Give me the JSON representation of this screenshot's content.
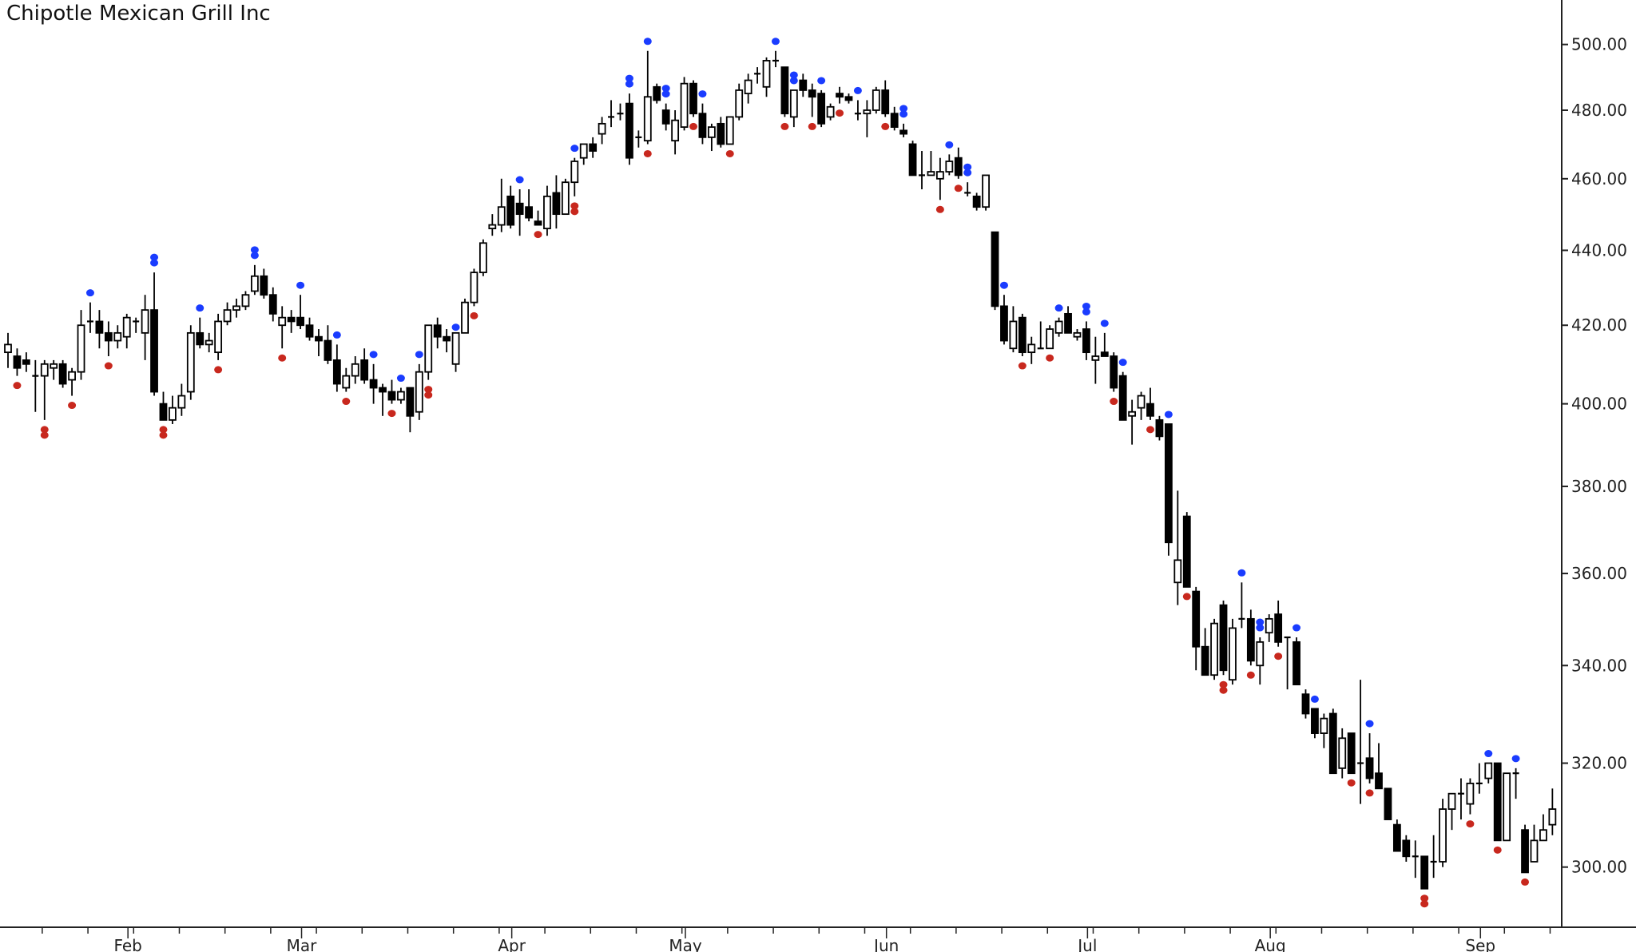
{
  "chart_data": {
    "type": "candlestick",
    "title": "Chipotle Mexican Grill Inc",
    "y_scale": "log",
    "ylim": [
      289,
      514
    ],
    "y_ticks": [
      "300.00",
      "320.00",
      "340.00",
      "360.00",
      "380.00",
      "400.00",
      "420.00",
      "440.00",
      "460.00",
      "480.00",
      "500.00"
    ],
    "y_axis_position": "right",
    "grid": false,
    "x_months": [
      {
        "label": "Feb",
        "index": 14
      },
      {
        "label": "Mar",
        "index": 33
      },
      {
        "label": "Apr",
        "index": 56
      },
      {
        "label": "May",
        "index": 75
      },
      {
        "label": "Jun",
        "index": 97
      },
      {
        "label": "Jul",
        "index": 119
      },
      {
        "label": "Aug",
        "index": 139
      },
      {
        "label": "Sep",
        "index": 162
      }
    ],
    "colors": {
      "up": "#ffffff",
      "down": "#000000",
      "outline": "#000000",
      "pivot_high": "#1a3cff",
      "pivot_low": "#c8281e"
    },
    "ohlc": [
      [
        413,
        418,
        409,
        415
      ],
      [
        412,
        414,
        407,
        409
      ],
      [
        411,
        413,
        408,
        410
      ],
      [
        407,
        411,
        398,
        407
      ],
      [
        407,
        411,
        396,
        410
      ],
      [
        409,
        411,
        406,
        410
      ],
      [
        410,
        411,
        404,
        405
      ],
      [
        406,
        409,
        402,
        408
      ],
      [
        408,
        424,
        406,
        420
      ],
      [
        421,
        426,
        418,
        421
      ],
      [
        421,
        424,
        414,
        418
      ],
      [
        418,
        421,
        412,
        416
      ],
      [
        416,
        420,
        414,
        418
      ],
      [
        417,
        423,
        414,
        422
      ],
      [
        421,
        422,
        418,
        421
      ],
      [
        418,
        428,
        411,
        424
      ],
      [
        424,
        434,
        402,
        403
      ],
      [
        400,
        403,
        396,
        396
      ],
      [
        396,
        402,
        395,
        399
      ],
      [
        399,
        405,
        397,
        402
      ],
      [
        403,
        420,
        401,
        418
      ],
      [
        418,
        422,
        414,
        415
      ],
      [
        415,
        418,
        413,
        416
      ],
      [
        413,
        423,
        411,
        421
      ],
      [
        421,
        426,
        420,
        424
      ],
      [
        424,
        427,
        422,
        425
      ],
      [
        425,
        429,
        424,
        428
      ],
      [
        429,
        436,
        428,
        433
      ],
      [
        433,
        435,
        427,
        428
      ],
      [
        428,
        430,
        421,
        423
      ],
      [
        420,
        425,
        414,
        422
      ],
      [
        422,
        424,
        418,
        421
      ],
      [
        422,
        428,
        419,
        420
      ],
      [
        420,
        422,
        416,
        417
      ],
      [
        417,
        419,
        412,
        416
      ],
      [
        416,
        420,
        410,
        411
      ],
      [
        411,
        415,
        403,
        405
      ],
      [
        404,
        409,
        403,
        407
      ],
      [
        407,
        412,
        405,
        410
      ],
      [
        411,
        414,
        405,
        406
      ],
      [
        406,
        410,
        400,
        404
      ],
      [
        404,
        405,
        397,
        403
      ],
      [
        403,
        406,
        400,
        401
      ],
      [
        401,
        404,
        400,
        403
      ],
      [
        404,
        404,
        393,
        397
      ],
      [
        398,
        410,
        396,
        408
      ],
      [
        408,
        420,
        406,
        420
      ],
      [
        420,
        422,
        414,
        417
      ],
      [
        417,
        419,
        413,
        416
      ],
      [
        410,
        417,
        408,
        418
      ],
      [
        418,
        427,
        418,
        426
      ],
      [
        426,
        435,
        425,
        434
      ],
      [
        434,
        443,
        433,
        442
      ],
      [
        446,
        450,
        444,
        447
      ],
      [
        447,
        460,
        445,
        452
      ],
      [
        455,
        458,
        446,
        447
      ],
      [
        453,
        457,
        444,
        450
      ],
      [
        452,
        457,
        448,
        449
      ],
      [
        448,
        451,
        447,
        447
      ],
      [
        446,
        458,
        444,
        455
      ],
      [
        456,
        461,
        446,
        450
      ],
      [
        450,
        460,
        450,
        459
      ],
      [
        459,
        466,
        455,
        465
      ],
      [
        466,
        470,
        464,
        470
      ],
      [
        470,
        472,
        466,
        468
      ],
      [
        473,
        478,
        470,
        476
      ],
      [
        478,
        483,
        475,
        478
      ],
      [
        479,
        482,
        477,
        479
      ],
      [
        482,
        485,
        464,
        466
      ],
      [
        472,
        474,
        469,
        472
      ],
      [
        471,
        498,
        470,
        484
      ],
      [
        487,
        488,
        482,
        483
      ],
      [
        480,
        482,
        474,
        476
      ],
      [
        471,
        480,
        467,
        477
      ],
      [
        475,
        490,
        474,
        488
      ],
      [
        488,
        489,
        478,
        479
      ],
      [
        479,
        482,
        470,
        472
      ],
      [
        472,
        476,
        468,
        475
      ],
      [
        476,
        478,
        469,
        470
      ],
      [
        470,
        478,
        470,
        478
      ],
      [
        478,
        488,
        477,
        486
      ],
      [
        485,
        491,
        482,
        489
      ],
      [
        491,
        493,
        488,
        491
      ],
      [
        487,
        496,
        484,
        495
      ],
      [
        495,
        498,
        493,
        495
      ],
      [
        493,
        493,
        478,
        479
      ],
      [
        478,
        486,
        475,
        486
      ],
      [
        489,
        491,
        484,
        486
      ],
      [
        486,
        488,
        478,
        484
      ],
      [
        485,
        486,
        475,
        476
      ],
      [
        478,
        482,
        477,
        481
      ],
      [
        485,
        487,
        482,
        484
      ],
      [
        484,
        485,
        482,
        483
      ],
      [
        479,
        483,
        477,
        479
      ],
      [
        479,
        483,
        472,
        480
      ],
      [
        480,
        487,
        479,
        486
      ],
      [
        486,
        489,
        478,
        479
      ],
      [
        479,
        481,
        474,
        475
      ],
      [
        474,
        476,
        472,
        473
      ],
      [
        470,
        471,
        461,
        461
      ],
      [
        461,
        468,
        457,
        461
      ],
      [
        461,
        468,
        461,
        462
      ],
      [
        460,
        466,
        454,
        462
      ],
      [
        462,
        467,
        461,
        465
      ],
      [
        466,
        469,
        460,
        461
      ],
      [
        456,
        459,
        455,
        456
      ],
      [
        455,
        456,
        451,
        452
      ],
      [
        452,
        461,
        451,
        461
      ],
      [
        445,
        445,
        424,
        425
      ],
      [
        425,
        428,
        415,
        416
      ],
      [
        414,
        425,
        413,
        421
      ],
      [
        422,
        423,
        412,
        413
      ],
      [
        413,
        417,
        410,
        415
      ],
      [
        414,
        421,
        414,
        414
      ],
      [
        414,
        420,
        414,
        419
      ],
      [
        418,
        422,
        417,
        421
      ],
      [
        423,
        425,
        418,
        418
      ],
      [
        417,
        419,
        416,
        418
      ],
      [
        419,
        421,
        411,
        413
      ],
      [
        411,
        417,
        405,
        412
      ],
      [
        413,
        418,
        413,
        412
      ],
      [
        412,
        413,
        403,
        404
      ],
      [
        407,
        408,
        396,
        396
      ],
      [
        397,
        401,
        390,
        398
      ],
      [
        399,
        403,
        396,
        402
      ],
      [
        400,
        404,
        396,
        397
      ],
      [
        396,
        397,
        391,
        392
      ],
      [
        395,
        395,
        364,
        367
      ],
      [
        358,
        379,
        353,
        363
      ],
      [
        373,
        374,
        357,
        357
      ],
      [
        356,
        357,
        339,
        344
      ],
      [
        344,
        348,
        338,
        338
      ],
      [
        338,
        350,
        337,
        349
      ],
      [
        353,
        354,
        338,
        339
      ],
      [
        337,
        350,
        336,
        348
      ],
      [
        350,
        358,
        348,
        350
      ],
      [
        350,
        352,
        340,
        341
      ],
      [
        340,
        346,
        336,
        345
      ],
      [
        347,
        351,
        345,
        350
      ],
      [
        351,
        354,
        344,
        345
      ],
      [
        346,
        346,
        335,
        346
      ],
      [
        345,
        346,
        336,
        336
      ],
      [
        334,
        335,
        329,
        330
      ],
      [
        331,
        331,
        325,
        326
      ],
      [
        326,
        330,
        323,
        329
      ],
      [
        330,
        331,
        318,
        318
      ],
      [
        319,
        327,
        317,
        325
      ],
      [
        326,
        326,
        318,
        318
      ],
      [
        320,
        337,
        312,
        320
      ],
      [
        321,
        326,
        316,
        317
      ],
      [
        318,
        324,
        315,
        315
      ],
      [
        315,
        315,
        309,
        309
      ],
      [
        308,
        309,
        303,
        303
      ],
      [
        305,
        306,
        301,
        302
      ],
      [
        302,
        305,
        298,
        302
      ],
      [
        302,
        302,
        296,
        296
      ],
      [
        301,
        306,
        298,
        301
      ],
      [
        301,
        313,
        300,
        311
      ],
      [
        311,
        314,
        307,
        314
      ],
      [
        314,
        317,
        309,
        314
      ],
      [
        312,
        317,
        310,
        316
      ],
      [
        316,
        320,
        314,
        316
      ],
      [
        317,
        320,
        316,
        320
      ],
      [
        320,
        320,
        305,
        305
      ],
      [
        305,
        318,
        305,
        318
      ],
      [
        318,
        319,
        313,
        318
      ],
      [
        307,
        308,
        299,
        299
      ],
      [
        301,
        308,
        301,
        305
      ],
      [
        305,
        310,
        305,
        307
      ],
      [
        308,
        315,
        306,
        311
      ]
    ],
    "pivot_highs": [
      9,
      16,
      21,
      27,
      32,
      36,
      40,
      43,
      45,
      49,
      56,
      62,
      68,
      70,
      72,
      76,
      84,
      86,
      89,
      93,
      98,
      103,
      105,
      109,
      115,
      118,
      120,
      122,
      127,
      135,
      137,
      141,
      143,
      149,
      162,
      165
    ],
    "pivot_highs_double": [
      16,
      27,
      68,
      72,
      86,
      98,
      105,
      118,
      137
    ],
    "pivot_lows": [
      1,
      4,
      7,
      11,
      17,
      23,
      30,
      37,
      42,
      46,
      51,
      58,
      62,
      70,
      75,
      79,
      85,
      88,
      91,
      96,
      102,
      104,
      111,
      114,
      121,
      125,
      129,
      133,
      136,
      139,
      147,
      149,
      155,
      160,
      163,
      166
    ],
    "pivot_lows_double": [
      4,
      17,
      46,
      62,
      133,
      155
    ]
  }
}
